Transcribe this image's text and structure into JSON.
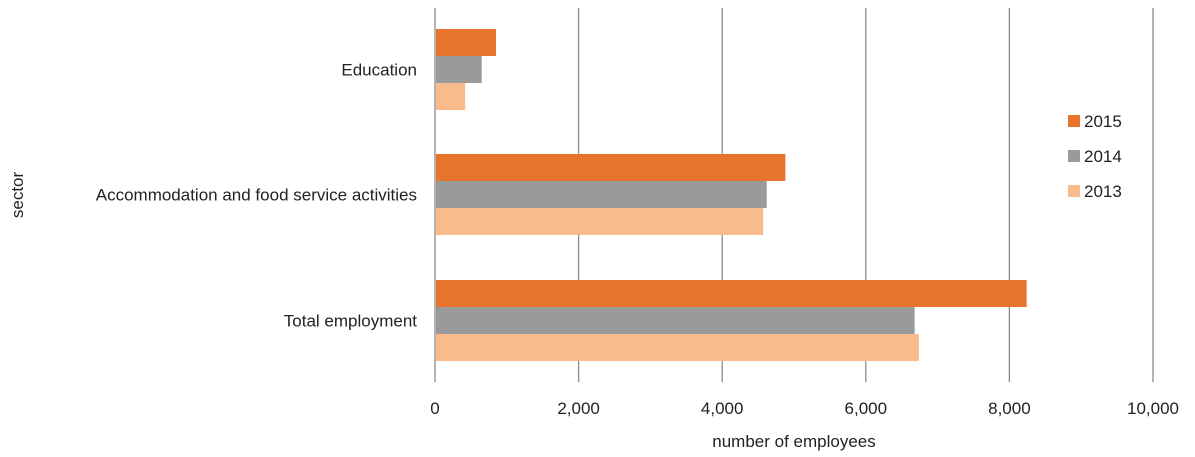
{
  "chart_data": {
    "type": "bar",
    "orientation": "horizontal",
    "categories": [
      "Education",
      "Accommodation and food service activities",
      "Total employment"
    ],
    "series": [
      {
        "name": "2015",
        "values": [
          850,
          4880,
          8240
        ]
      },
      {
        "name": "2014",
        "values": [
          650,
          4620,
          6680
        ]
      },
      {
        "name": "2013",
        "values": [
          420,
          4570,
          6740
        ]
      }
    ],
    "xlabel": "number of employees",
    "ylabel": "sector",
    "xlim": [
      0,
      10000
    ],
    "x_ticks": [
      0,
      2000,
      4000,
      6000,
      8000,
      10000
    ],
    "x_tick_labels": [
      "0",
      "2,000",
      "4,000",
      "6,000",
      "8,000",
      "10,000"
    ],
    "grid": "vertical",
    "legend_position": "right",
    "colors": {
      "2015": "#e8732a",
      "2014": "#9a9a9a",
      "2013": "#f9bb8c"
    }
  }
}
